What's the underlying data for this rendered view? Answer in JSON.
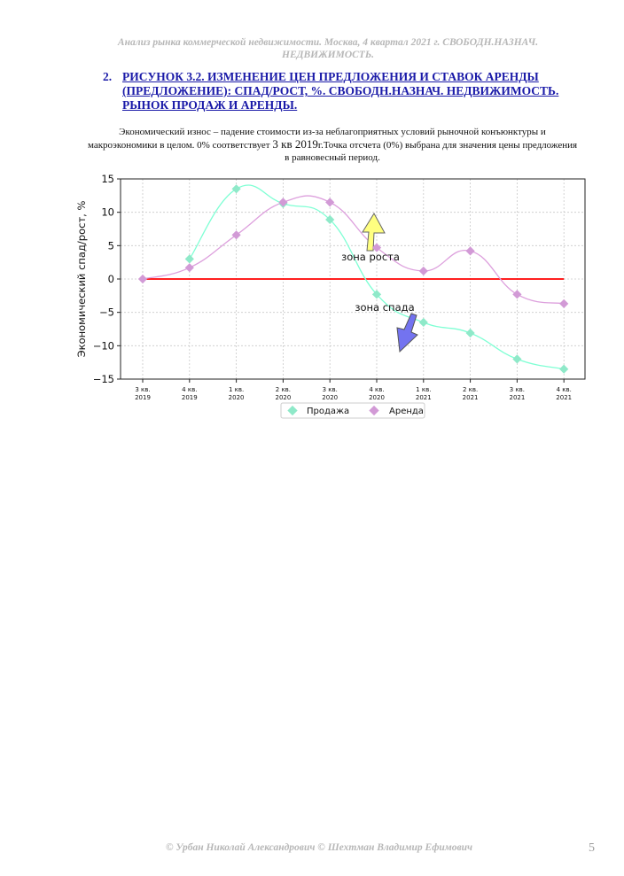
{
  "header": {
    "line1": "Анализ рынка коммерческой недвижимости.   Москва,  4 квартал 2021 г.   СВОБОДН.НАЗНАЧ.",
    "line2": "НЕДВИЖИМОСТЬ."
  },
  "figure": {
    "number": "2.",
    "title": "РИСУНОК 3.2. ИЗМЕНЕНИЕ ЦЕН ПРЕДЛОЖЕНИЯ И СТАВОК АРЕНДЫ (ПРЕДЛОЖЕНИЕ): СПАД/РОСТ, %. СВОБОДН.НАЗНАЧ. НЕДВИЖИМОСТЬ. РЫНОК ПРОДАЖ И АРЕНДЫ."
  },
  "description": {
    "part1": "Экономический износ – падение стоимости из-за неблагоприятных условий рыночной конъюнктуры и макроэкономики в целом. 0% соответствует ",
    "big": "3 кв 2019",
    "part2": "г.Точка отсчета (0%) выбрана для значения цены предложения в равновесный период."
  },
  "chart_data": {
    "type": "line",
    "ylabel": "Экономический спад/рост, %",
    "ylim": [
      -15,
      15
    ],
    "yticks": [
      "15",
      "10",
      "5",
      "0",
      "−5",
      "−10",
      "−15"
    ],
    "categories": [
      [
        "3 кв.",
        "2019"
      ],
      [
        "4 кв.",
        "2019"
      ],
      [
        "1 кв.",
        "2020"
      ],
      [
        "2 кв.",
        "2020"
      ],
      [
        "3 кв.",
        "2020"
      ],
      [
        "4 кв.",
        "2020"
      ],
      [
        "1 кв.",
        "2021"
      ],
      [
        "2 кв.",
        "2021"
      ],
      [
        "3 кв.",
        "2021"
      ],
      [
        "4 кв.",
        "2021"
      ]
    ],
    "series": [
      {
        "name": "Продажа",
        "color": "#7fffd4",
        "marker": "#8fe9c9",
        "values": [
          null,
          3.0,
          13.5,
          11.3,
          8.9,
          -2.3,
          -6.5,
          -8.1,
          -12.0,
          -13.5
        ]
      },
      {
        "name": "Аренда",
        "color": "#dda0dd",
        "marker": "#d29ad6",
        "values": [
          0.0,
          1.7,
          6.6,
          11.5,
          11.5,
          4.7,
          1.2,
          4.2,
          -2.3,
          -3.7
        ]
      }
    ],
    "baseline": {
      "value": 0,
      "color": "#ff0000"
    },
    "annotations": {
      "growth": "зона роста",
      "decline": "зона спада"
    },
    "grid": true,
    "legend_position": "bottom-center"
  },
  "footer": {
    "authors": "© Урбан Николай Александрович   © Шехтман Владимир Ефимович",
    "page": "5"
  }
}
